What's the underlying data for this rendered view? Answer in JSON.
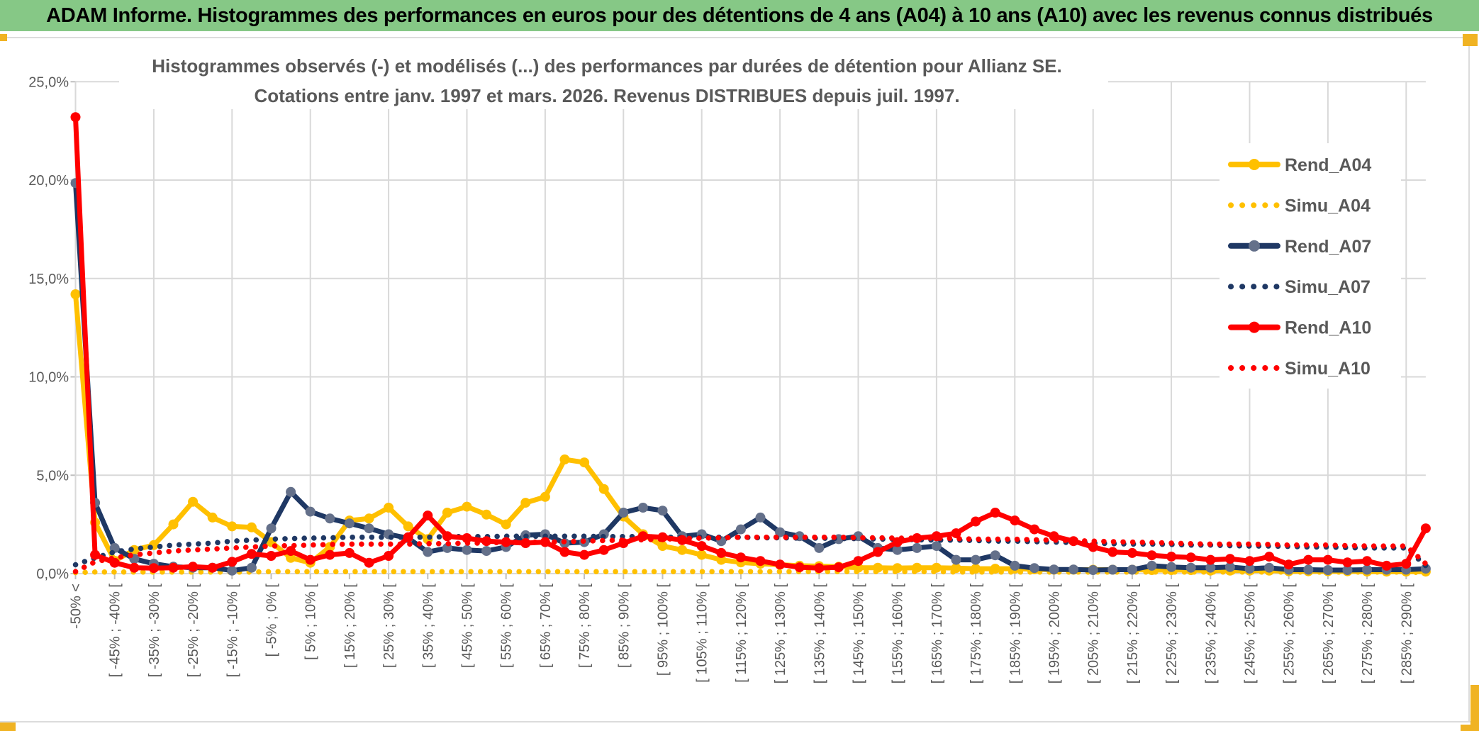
{
  "window": {
    "title": "ADAM Informe. Histogrammes des performances en euros pour des détentions de 4 ans (A04) à 10 ans (A10) avec les revenus connus distribués",
    "title_bar_color": "#86C886",
    "title_text_color": "#000000"
  },
  "frame": {
    "border_color": "#DCDCDC",
    "handle_color": "#F0B323",
    "background": "#FFFFFF"
  },
  "chart_data": {
    "type": "line",
    "title_lines": [
      "Histogrammes observés (-) et modélisés (...) des performances par durées de détention pour Allianz SE.",
      "Cotations entre janv. 1997 et mars. 2026. Revenus DISTRIBUES depuis juil. 1997."
    ],
    "title_color": "#595959",
    "ylabel": "",
    "xlabel": "",
    "ylim": [
      0,
      25
    ],
    "y_tick_labels": [
      "0,0%",
      "5,0%",
      "10,0%",
      "15,0%",
      "20,0%",
      "25,0%"
    ],
    "grid": true,
    "gridline_color": "#D9D9D9",
    "tick_color": "#BFBFBF",
    "axis_text_color": "#595959",
    "legend_position": "right-overlay",
    "label_every": 2,
    "x_labels": [
      "-50% <",
      "[ -45% ; -40% [",
      "[ -35% ; -30% [",
      "[ -25% ; -20% [",
      "[ -15% ; -10% [",
      "[ -5% ; 0% [",
      "[ 5% ; 10% [",
      "[ 15% ; 20% [",
      "[ 25% ; 30% [",
      "[ 35% ; 40% [",
      "[ 45% ; 50% [",
      "[ 55% ; 60% [",
      "[ 65% ; 70% [",
      "[ 75% ; 80% [",
      "[ 85% ; 90% [",
      "[ 95% ; 100% [",
      "[ 105% ; 110% [",
      "[ 115% ; 120% [",
      "[ 125% ; 130% [",
      "[ 135% ; 140% [",
      "[ 145% ; 150% [",
      "[ 155% ; 160% [",
      "[ 165% ; 170% [",
      "[ 175% ; 180% [",
      "[ 185% ; 190% [",
      "[ 195% ; 200% [",
      "[ 205% ; 210% [",
      "[ 215% ; 220% [",
      "[ 225% ; 230% [",
      "[ 235% ; 240% [",
      "[ 245% ; 250% [",
      "[ 255% ; 260% [",
      "[ 265% ; 270% [",
      "[ 275% ; 280% [",
      "[ 285% ; 290% ["
    ],
    "series": [
      {
        "name": "Rend_A04",
        "style": "solid",
        "color": "#FFC000",
        "marker_color": "#FFC000",
        "values": [
          14.2,
          2.6,
          0.65,
          1.2,
          1.45,
          2.5,
          3.65,
          2.85,
          2.4,
          2.35,
          1.6,
          0.8,
          0.55,
          1.35,
          2.7,
          2.8,
          3.35,
          2.4,
          1.75,
          3.1,
          3.4,
          3.0,
          2.5,
          3.6,
          3.9,
          5.8,
          5.65,
          4.3,
          2.9,
          2.0,
          1.4,
          1.2,
          0.95,
          0.7,
          0.57,
          0.5,
          0.45,
          0.4,
          0.38,
          0.35,
          0.3,
          0.3,
          0.28,
          0.3,
          0.3,
          0.28,
          0.25,
          0.25,
          0.25,
          0.22,
          0.2,
          0.2,
          0.2,
          0.2,
          0.2,
          0.18,
          0.18,
          0.18,
          0.15,
          0.15,
          0.15,
          0.15,
          0.12,
          0.12,
          0.12,
          0.12,
          0.1,
          0.1,
          0.1,
          0.1
        ]
      },
      {
        "name": "Simu_A04",
        "style": "dotted",
        "color": "#FFC000",
        "marker_color": "#FFC000",
        "values": [
          0.05,
          0.08,
          0.08,
          0.08,
          0.08,
          0.08,
          0.08,
          0.08,
          0.08,
          0.08,
          0.1,
          0.1,
          0.1,
          0.1,
          0.1,
          0.1,
          0.1,
          0.1,
          0.1,
          0.1,
          0.1,
          0.1,
          0.1,
          0.1,
          0.1,
          0.1,
          0.1,
          0.1,
          0.1,
          0.1,
          0.1,
          0.1,
          0.1,
          0.1,
          0.1,
          0.1,
          0.1,
          0.1,
          0.1,
          0.1,
          0.1,
          0.1,
          0.1,
          0.1,
          0.1,
          0.08,
          0.08,
          0.08,
          0.08,
          0.08,
          0.08,
          0.08,
          0.08,
          0.08,
          0.08,
          0.08,
          0.08,
          0.08,
          0.08,
          0.08,
          0.08,
          0.08,
          0.08,
          0.08,
          0.08,
          0.08,
          0.08,
          0.08,
          0.08,
          0.05
        ]
      },
      {
        "name": "Rend_A07",
        "style": "solid",
        "color": "#1F3864",
        "marker_color": "#64708A",
        "values": [
          19.85,
          3.6,
          1.3,
          0.75,
          0.5,
          0.35,
          0.3,
          0.3,
          0.15,
          0.3,
          2.3,
          4.15,
          3.15,
          2.8,
          2.55,
          2.3,
          2.0,
          1.8,
          1.1,
          1.3,
          1.2,
          1.15,
          1.35,
          1.95,
          2.0,
          1.55,
          1.6,
          2.0,
          3.1,
          3.35,
          3.2,
          1.9,
          2.0,
          1.65,
          2.25,
          2.85,
          2.1,
          1.9,
          1.3,
          1.75,
          1.9,
          1.3,
          1.2,
          1.3,
          1.4,
          0.7,
          0.7,
          0.93,
          0.4,
          0.28,
          0.21,
          0.21,
          0.18,
          0.2,
          0.2,
          0.4,
          0.33,
          0.3,
          0.3,
          0.33,
          0.25,
          0.3,
          0.2,
          0.2,
          0.18,
          0.18,
          0.2,
          0.2,
          0.2,
          0.25
        ]
      },
      {
        "name": "Simu_A07",
        "style": "dotted",
        "color": "#1F3864",
        "marker_color": "#1F3864",
        "values": [
          0.45,
          0.8,
          1.1,
          1.25,
          1.35,
          1.45,
          1.5,
          1.55,
          1.65,
          1.7,
          1.75,
          1.78,
          1.8,
          1.82,
          1.85,
          1.85,
          1.85,
          1.85,
          1.85,
          1.88,
          1.88,
          1.88,
          1.9,
          1.9,
          1.9,
          1.9,
          1.9,
          1.88,
          1.88,
          1.88,
          1.85,
          1.85,
          1.85,
          1.85,
          1.85,
          1.82,
          1.82,
          1.8,
          1.8,
          1.78,
          1.78,
          1.75,
          1.75,
          1.72,
          1.7,
          1.7,
          1.68,
          1.65,
          1.65,
          1.62,
          1.6,
          1.58,
          1.55,
          1.52,
          1.5,
          1.5,
          1.48,
          1.45,
          1.45,
          1.42,
          1.4,
          1.4,
          1.38,
          1.35,
          1.35,
          1.32,
          1.3,
          1.3,
          1.3,
          0.4
        ]
      },
      {
        "name": "Rend_A10",
        "style": "solid",
        "color": "#FF0000",
        "marker_color": "#FF0000",
        "values": [
          23.2,
          0.95,
          0.55,
          0.3,
          0.28,
          0.3,
          0.35,
          0.3,
          0.6,
          1.0,
          0.9,
          1.15,
          0.7,
          0.95,
          1.05,
          0.55,
          0.9,
          1.85,
          2.95,
          1.9,
          1.8,
          1.65,
          1.6,
          1.55,
          1.6,
          1.1,
          0.95,
          1.2,
          1.55,
          1.9,
          1.85,
          1.7,
          1.4,
          1.05,
          0.82,
          0.64,
          0.46,
          0.32,
          0.28,
          0.32,
          0.64,
          1.1,
          1.6,
          1.8,
          1.9,
          2.05,
          2.65,
          3.1,
          2.7,
          2.25,
          1.9,
          1.65,
          1.35,
          1.1,
          1.05,
          0.93,
          0.86,
          0.82,
          0.7,
          0.75,
          0.64,
          0.86,
          0.46,
          0.7,
          0.7,
          0.57,
          0.64,
          0.4,
          0.5,
          2.3
        ]
      },
      {
        "name": "Simu_A10",
        "style": "dotted",
        "color": "#FF0000",
        "marker_color": "#FF0000",
        "values": [
          0.1,
          0.6,
          0.8,
          0.95,
          1.05,
          1.15,
          1.2,
          1.25,
          1.3,
          1.35,
          1.4,
          1.42,
          1.45,
          1.48,
          1.5,
          1.5,
          1.5,
          1.5,
          1.52,
          1.52,
          1.55,
          1.55,
          1.6,
          1.6,
          1.6,
          1.62,
          1.65,
          1.68,
          1.7,
          1.72,
          1.75,
          1.78,
          1.8,
          1.82,
          1.85,
          1.85,
          1.85,
          1.85,
          1.85,
          1.85,
          1.82,
          1.82,
          1.8,
          1.8,
          1.8,
          1.78,
          1.75,
          1.75,
          1.75,
          1.72,
          1.7,
          1.68,
          1.65,
          1.62,
          1.6,
          1.58,
          1.55,
          1.52,
          1.5,
          1.5,
          1.5,
          1.48,
          1.45,
          1.45,
          1.45,
          1.42,
          1.4,
          1.4,
          1.4,
          0.5
        ]
      }
    ],
    "legend_text_color": "#595959"
  }
}
